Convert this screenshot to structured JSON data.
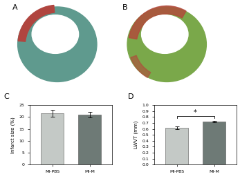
{
  "images": [
    {
      "label": "A"
    },
    {
      "label": "B"
    }
  ],
  "chart_data": [
    {
      "type": "bar",
      "title": "C",
      "ylabel": "Infarct size (%)",
      "categories": [
        "MI-PBS",
        "MI-M"
      ],
      "values": [
        21.5,
        21.0
      ],
      "errors": [
        1.5,
        1.2
      ],
      "colors": [
        "#c4c9c6",
        "#6e7a76"
      ],
      "ylim": [
        0,
        25
      ],
      "yticks": [
        0,
        5,
        10,
        15,
        20,
        25
      ],
      "grid": false
    },
    {
      "type": "bar",
      "title": "D",
      "ylabel": "LWVT (mm)",
      "categories": [
        "MI-PBS",
        "MI-M"
      ],
      "values": [
        0.62,
        0.72
      ],
      "errors": [
        0.02,
        0.015
      ],
      "colors": [
        "#c4c9c6",
        "#6e7a76"
      ],
      "ylim": [
        0.0,
        1.0
      ],
      "yticks": [
        0.0,
        0.1,
        0.2,
        0.3,
        0.4,
        0.5,
        0.6,
        0.7,
        0.8,
        0.9,
        1.0
      ],
      "grid": false,
      "annotations": [
        {
          "text": "*",
          "between": [
            "MI-PBS",
            "MI-M"
          ]
        }
      ]
    }
  ]
}
